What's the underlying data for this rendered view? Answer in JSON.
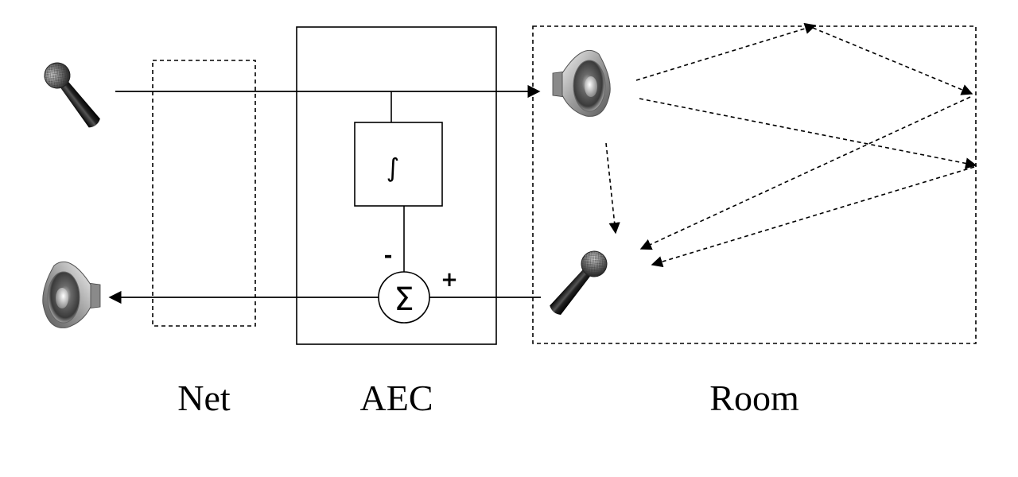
{
  "labels": {
    "net": "Net",
    "aec": "AEC",
    "room": "Room"
  },
  "filter_block": {
    "symbol": "∫"
  },
  "summing_junction": {
    "symbol": "Σ",
    "minus_sign": "-",
    "plus_sign": "+"
  },
  "icons": {
    "far_end_microphone": "microphone-icon",
    "far_end_speaker": "speaker-icon",
    "room_speaker": "speaker-icon",
    "room_microphone": "microphone-icon"
  },
  "colors": {
    "line": "#000000",
    "background": "#ffffff"
  }
}
